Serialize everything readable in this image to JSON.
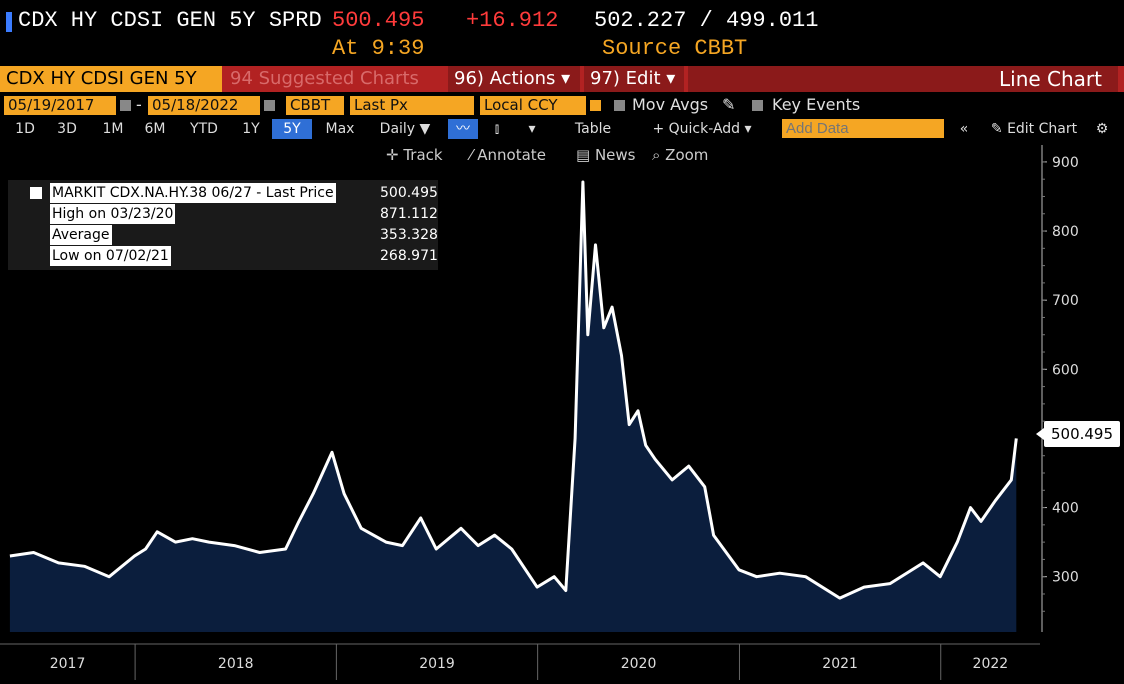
{
  "header": {
    "ticker": "CDX HY CDSI GEN 5Y SPRD",
    "last": "500.495",
    "change": "+16.912",
    "range": "502.227 / 499.011",
    "time": "At 9:39",
    "source": "Source CBBT",
    "colors": {
      "last": "#ff3b3b",
      "change": "#ff3b3b",
      "range": "#ffffff",
      "accent": "#f5a623"
    }
  },
  "menubar": {
    "security": "CDX HY CDSI GEN 5Y",
    "suggested": "94 Suggested Charts",
    "actions": "96) Actions ▾",
    "edit": "97) Edit ▾",
    "chart_type": "Line Chart"
  },
  "filters": {
    "start_date": "05/19/2017",
    "dash": "-",
    "end_date": "05/18/2022",
    "source": "CBBT",
    "field": "Last Px",
    "currency": "Local CCY",
    "mov_avgs": "Mov Avgs",
    "key_events": "Key Events"
  },
  "toolbar": {
    "ranges": [
      "1D",
      "3D",
      "1M",
      "6M",
      "YTD",
      "1Y",
      "5Y",
      "Max"
    ],
    "selected_range": "5Y",
    "period": "Daily ▼",
    "table": "Table",
    "quick_add": "+ Quick-Add ▾",
    "add_data_placeholder": "Add Data",
    "edit_chart": "Edit Chart"
  },
  "chart_tools": {
    "track": "Track",
    "annotate": "Annotate",
    "news": "News",
    "zoom": "Zoom"
  },
  "legend": {
    "title": "MARKIT CDX.NA.HY.38 06/27 - Last Price",
    "title_value": "500.495",
    "high_label": "High on 03/23/20",
    "high_value": "871.112",
    "avg_label": "Average",
    "avg_value": "353.328",
    "low_label": "Low on 07/02/21",
    "low_value": "268.971"
  },
  "last_tag": "500.495",
  "chart_data": {
    "type": "area",
    "x_axis": {
      "labels": [
        "2017",
        "2018",
        "2019",
        "2020",
        "2021",
        "2022"
      ]
    },
    "y_axis": {
      "ticks": [
        300,
        400,
        500,
        600,
        700,
        800,
        900
      ],
      "range": [
        220,
        910
      ],
      "position": "right"
    },
    "series": [
      {
        "values": [
          {
            "x": "2017-05-19",
            "y": 330
          },
          {
            "x": "2017-07-01",
            "y": 335
          },
          {
            "x": "2017-08-15",
            "y": 320
          },
          {
            "x": "2017-10-01",
            "y": 315
          },
          {
            "x": "2017-11-15",
            "y": 300
          },
          {
            "x": "2017-12-31",
            "y": 330
          },
          {
            "x": "2018-01-20",
            "y": 340
          },
          {
            "x": "2018-02-10",
            "y": 365
          },
          {
            "x": "2018-03-15",
            "y": 350
          },
          {
            "x": "2018-04-15",
            "y": 355
          },
          {
            "x": "2018-05-15",
            "y": 350
          },
          {
            "x": "2018-06-30",
            "y": 345
          },
          {
            "x": "2018-08-15",
            "y": 335
          },
          {
            "x": "2018-10-01",
            "y": 340
          },
          {
            "x": "2018-10-25",
            "y": 380
          },
          {
            "x": "2018-11-20",
            "y": 420
          },
          {
            "x": "2018-12-24",
            "y": 480
          },
          {
            "x": "2019-01-15",
            "y": 420
          },
          {
            "x": "2019-02-15",
            "y": 370
          },
          {
            "x": "2019-04-01",
            "y": 350
          },
          {
            "x": "2019-05-01",
            "y": 345
          },
          {
            "x": "2019-06-03",
            "y": 385
          },
          {
            "x": "2019-07-01",
            "y": 340
          },
          {
            "x": "2019-08-15",
            "y": 370
          },
          {
            "x": "2019-09-15",
            "y": 345
          },
          {
            "x": "2019-10-15",
            "y": 360
          },
          {
            "x": "2019-11-15",
            "y": 340
          },
          {
            "x": "2019-12-31",
            "y": 285
          },
          {
            "x": "2020-01-31",
            "y": 300
          },
          {
            "x": "2020-02-21",
            "y": 280
          },
          {
            "x": "2020-03-09",
            "y": 500
          },
          {
            "x": "2020-03-23",
            "y": 871
          },
          {
            "x": "2020-04-01",
            "y": 650
          },
          {
            "x": "2020-04-15",
            "y": 780
          },
          {
            "x": "2020-04-30",
            "y": 660
          },
          {
            "x": "2020-05-15",
            "y": 690
          },
          {
            "x": "2020-06-01",
            "y": 620
          },
          {
            "x": "2020-06-15",
            "y": 520
          },
          {
            "x": "2020-07-01",
            "y": 540
          },
          {
            "x": "2020-07-15",
            "y": 490
          },
          {
            "x": "2020-08-01",
            "y": 470
          },
          {
            "x": "2020-09-01",
            "y": 440
          },
          {
            "x": "2020-10-01",
            "y": 460
          },
          {
            "x": "2020-10-30",
            "y": 430
          },
          {
            "x": "2020-11-15",
            "y": 360
          },
          {
            "x": "2020-12-31",
            "y": 310
          },
          {
            "x": "2021-02-01",
            "y": 300
          },
          {
            "x": "2021-03-15",
            "y": 305
          },
          {
            "x": "2021-05-01",
            "y": 300
          },
          {
            "x": "2021-07-02",
            "y": 269
          },
          {
            "x": "2021-08-15",
            "y": 285
          },
          {
            "x": "2021-10-01",
            "y": 290
          },
          {
            "x": "2021-11-30",
            "y": 320
          },
          {
            "x": "2021-12-31",
            "y": 300
          },
          {
            "x": "2022-01-31",
            "y": 350
          },
          {
            "x": "2022-02-24",
            "y": 400
          },
          {
            "x": "2022-03-15",
            "y": 380
          },
          {
            "x": "2022-04-10",
            "y": 410
          },
          {
            "x": "2022-05-09",
            "y": 440
          },
          {
            "x": "2022-05-18",
            "y": 500
          }
        ]
      }
    ],
    "colors": {
      "line": "#ffffff",
      "fill": "#0b1e3d"
    },
    "grid": false,
    "legend_position": "top-left"
  }
}
